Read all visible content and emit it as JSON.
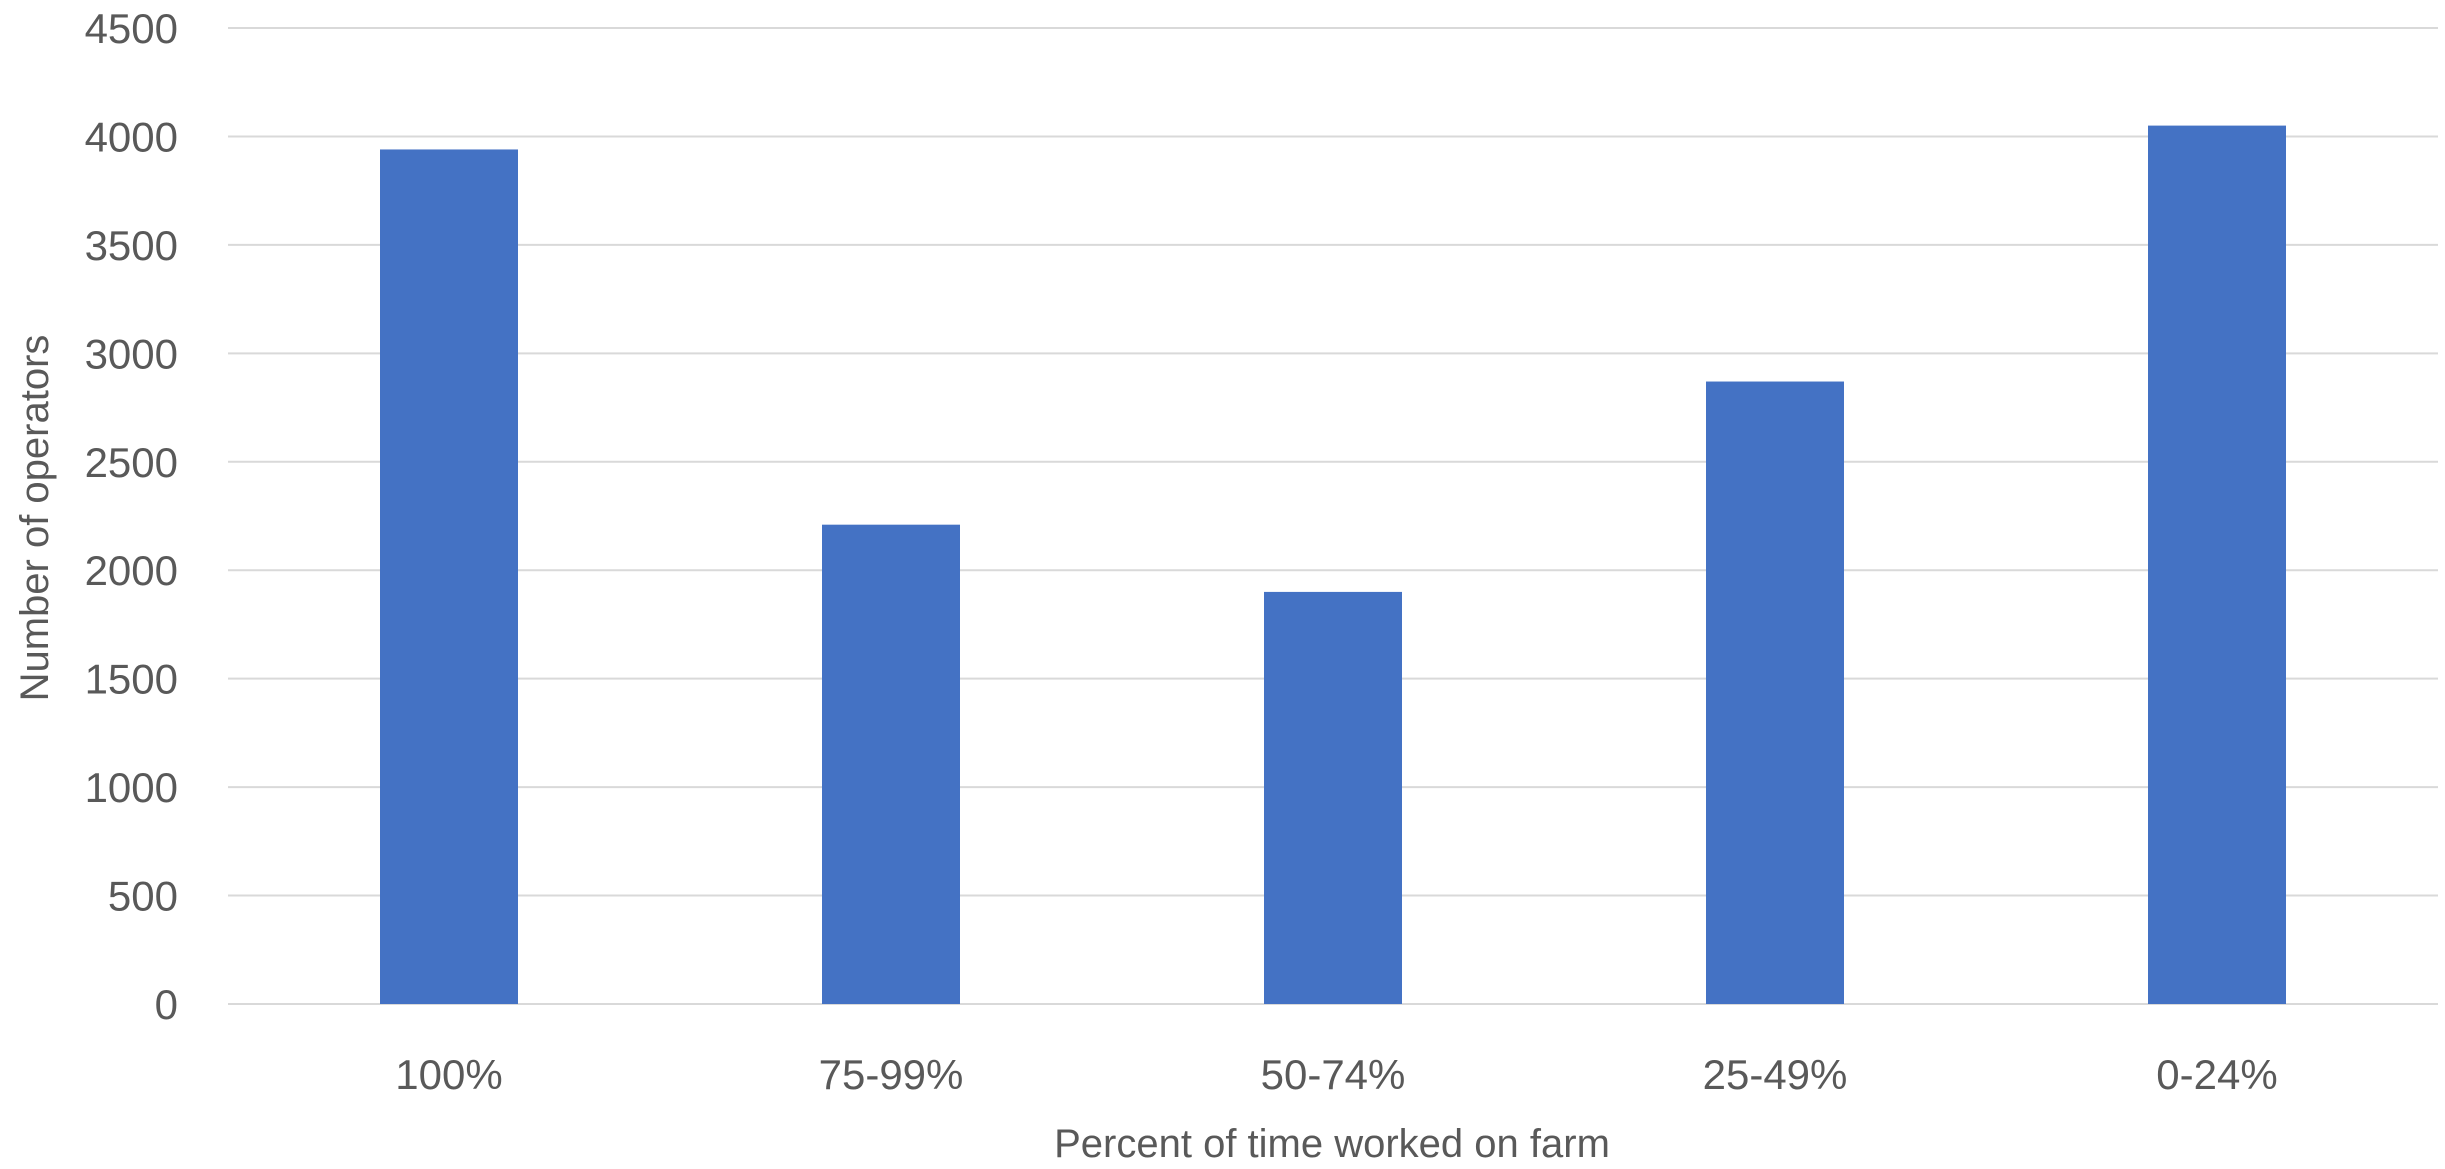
{
  "chart_data": {
    "type": "bar",
    "categories": [
      "100%",
      "75-99%",
      "50-74%",
      "25-49%",
      "0-24%"
    ],
    "values": [
      3940,
      2210,
      1900,
      2870,
      4050
    ],
    "title": "",
    "xlabel": "Percent of time worked on farm",
    "ylabel": "Number of operators",
    "ylim": [
      0,
      4500
    ],
    "y_ticks": [
      "0",
      "500",
      "1000",
      "1500",
      "2000",
      "2500",
      "3000",
      "3500",
      "4000",
      "4500"
    ],
    "grid": true,
    "legend": "none",
    "bar_color": "#4472C4",
    "grid_color": "#D9D9D9",
    "text_color": "#595959"
  }
}
